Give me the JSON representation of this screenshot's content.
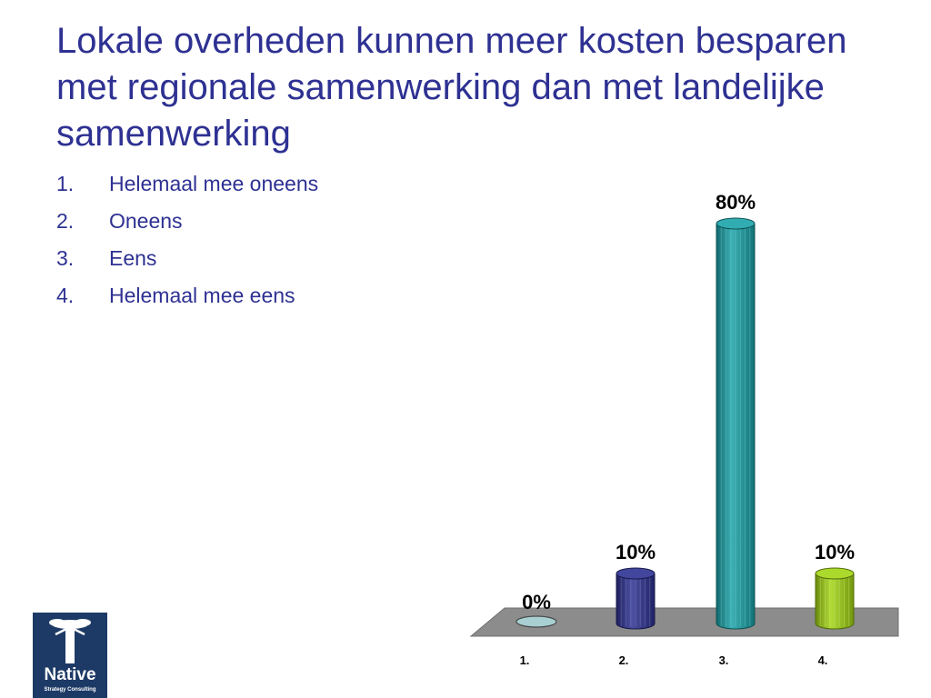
{
  "slide": {
    "title": "Lokale overheden kunnen meer kosten besparen met regionale samenwerking dan met landelijke samenwerking",
    "options": [
      {
        "num": "1.",
        "text": "Helemaal mee oneens"
      },
      {
        "num": "2.",
        "text": "Oneens"
      },
      {
        "num": "3.",
        "text": "Eens"
      },
      {
        "num": "4.",
        "text": "Helemaal mee eens"
      }
    ]
  },
  "chart_data": {
    "type": "bar",
    "categories": [
      "1.",
      "2.",
      "3.",
      "4."
    ],
    "values": [
      0,
      10,
      80,
      10
    ],
    "data_labels": [
      "0%",
      "10%",
      "80%",
      "10%"
    ],
    "ylim": [
      0,
      80
    ],
    "grid": false,
    "legend": "none",
    "colors": [
      "#a8cfd2",
      "#2e3192",
      "#1aa3a8",
      "#a3d614"
    ],
    "floor_color": "#8c8c8c"
  },
  "logo": {
    "icon": "tree-icon",
    "name": "Native",
    "subtitle": "Strategy Consulting",
    "color": "#1d3a66"
  }
}
